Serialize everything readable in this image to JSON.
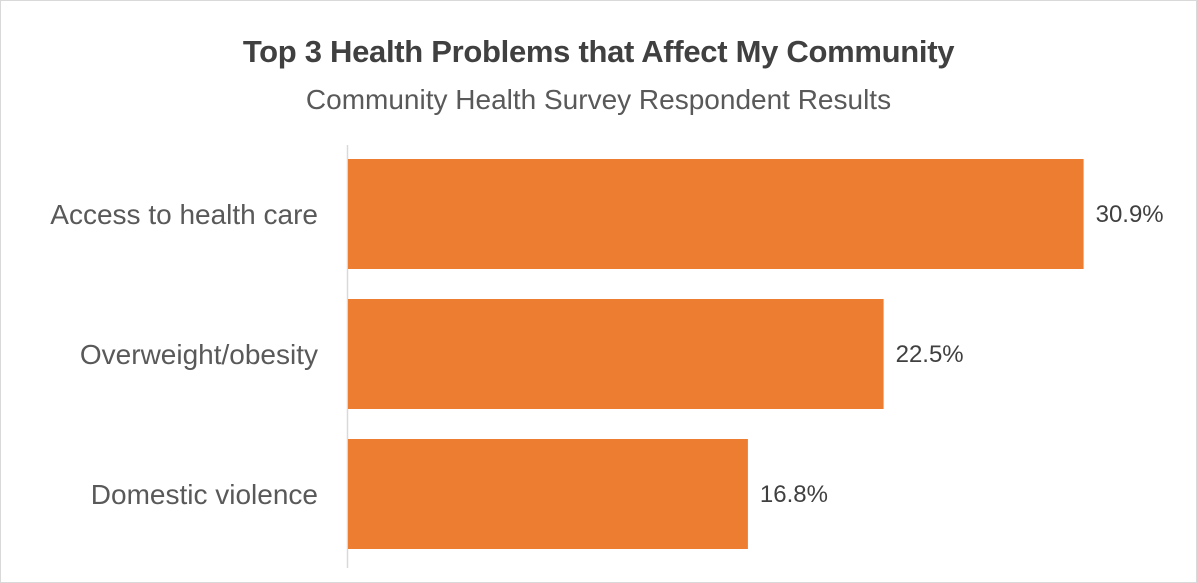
{
  "chart_data": {
    "type": "bar",
    "orientation": "horizontal",
    "title": "Top 3 Health Problems that Affect My Community",
    "subtitle": "Community Health Survey Respondent Results",
    "categories": [
      "Access to health care",
      "Overweight/obesity",
      "Domestic violence"
    ],
    "values": [
      30.9,
      22.5,
      16.8
    ],
    "value_labels": [
      "30.9%",
      "22.5%",
      "16.8%"
    ],
    "value_unit": "%",
    "xlim": [
      0,
      31
    ],
    "grid": false,
    "legend": "none",
    "bar_color": "#ED7D31"
  }
}
